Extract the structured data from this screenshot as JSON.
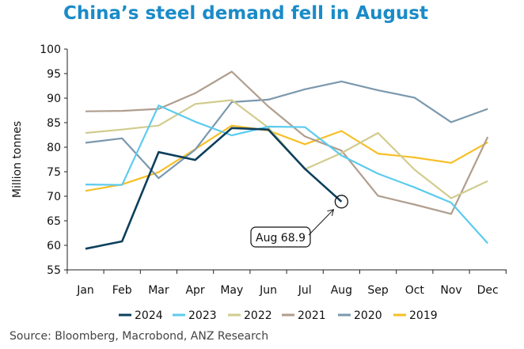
{
  "chart_data": {
    "type": "line",
    "title": "China’s steel demand fell in August",
    "xlabel": "",
    "ylabel": "Million tonnes",
    "categories": [
      "Jan",
      "Feb",
      "Mar",
      "Apr",
      "May",
      "Jun",
      "Jul",
      "Aug",
      "Sep",
      "Oct",
      "Nov",
      "Dec"
    ],
    "ylim": [
      55,
      100
    ],
    "yticks": [
      55,
      60,
      65,
      70,
      75,
      80,
      85,
      90,
      95,
      100
    ],
    "grid": false,
    "legend_position": "bottom",
    "series": [
      {
        "name": "2024",
        "color": "#0d3f5c",
        "values": [
          59.3,
          60.8,
          79.0,
          77.4,
          83.9,
          83.6,
          75.6,
          68.9,
          null,
          null,
          null,
          null
        ]
      },
      {
        "name": "2023",
        "color": "#5ccbef",
        "values": [
          72.4,
          72.3,
          88.5,
          85.2,
          82.4,
          84.2,
          84.1,
          78.3,
          74.6,
          71.8,
          68.7,
          60.4
        ]
      },
      {
        "name": "2022",
        "color": "#d2cc8e",
        "values": [
          82.9,
          83.6,
          84.4,
          88.8,
          89.6,
          84.0,
          75.5,
          78.8,
          82.9,
          75.4,
          69.6,
          73.1
        ]
      },
      {
        "name": "2021",
        "color": "#b09e8e",
        "values": [
          87.3,
          87.4,
          87.8,
          91.0,
          95.4,
          88.3,
          82.2,
          79.3,
          70.1,
          68.3,
          66.4,
          82.1
        ]
      },
      {
        "name": "2020",
        "color": "#7b98ad",
        "values": [
          80.9,
          81.8,
          73.7,
          79.5,
          89.2,
          89.7,
          91.8,
          93.4,
          91.6,
          90.1,
          85.1,
          87.8
        ]
      },
      {
        "name": "2019",
        "color": "#f7bf26",
        "values": [
          71.1,
          72.4,
          74.9,
          79.6,
          84.4,
          83.4,
          80.6,
          83.3,
          78.7,
          77.9,
          76.8,
          81.0
        ]
      }
    ],
    "annotations": [
      {
        "label": "Aug 68.9",
        "category": "Aug",
        "value": 68.9,
        "series": "2024"
      }
    ]
  },
  "source": "Source: Bloomberg, Macrobond, ANZ Research"
}
